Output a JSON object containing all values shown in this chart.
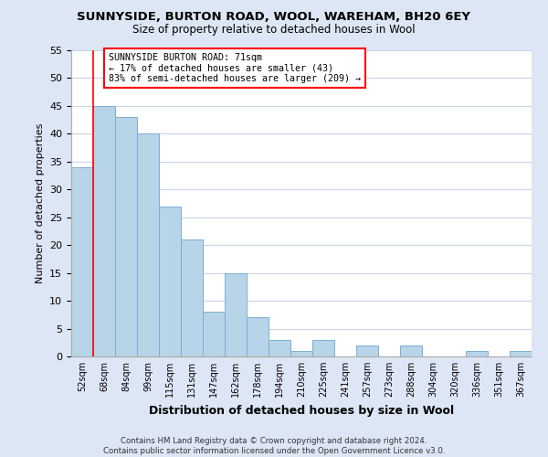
{
  "title": "SUNNYSIDE, BURTON ROAD, WOOL, WAREHAM, BH20 6EY",
  "subtitle": "Size of property relative to detached houses in Wool",
  "xlabel": "Distribution of detached houses by size in Wool",
  "ylabel": "Number of detached properties",
  "bar_color": "#b8d4e8",
  "bar_edge_color": "#7aafd4",
  "bin_labels": [
    "52sqm",
    "68sqm",
    "84sqm",
    "99sqm",
    "115sqm",
    "131sqm",
    "147sqm",
    "162sqm",
    "178sqm",
    "194sqm",
    "210sqm",
    "225sqm",
    "241sqm",
    "257sqm",
    "273sqm",
    "288sqm",
    "304sqm",
    "320sqm",
    "336sqm",
    "351sqm",
    "367sqm"
  ],
  "bar_heights": [
    34,
    45,
    43,
    40,
    27,
    21,
    8,
    15,
    7,
    3,
    1,
    3,
    0,
    2,
    0,
    2,
    0,
    0,
    1,
    0,
    1
  ],
  "ylim": [
    0,
    55
  ],
  "yticks": [
    0,
    5,
    10,
    15,
    20,
    25,
    30,
    35,
    40,
    45,
    50,
    55
  ],
  "red_line_bin_index": 1,
  "annotation_line1": "SUNNYSIDE BURTON ROAD: 71sqm",
  "annotation_line2": "← 17% of detached houses are smaller (43)",
  "annotation_line3": "83% of semi-detached houses are larger (209) →",
  "footer_line1": "Contains HM Land Registry data © Crown copyright and database right 2024.",
  "footer_line2": "Contains public sector information licensed under the Open Government Licence v3.0.",
  "background_color": "#dce6f5",
  "plot_bg_color": "#ffffff",
  "grid_color": "#c8d4e8"
}
